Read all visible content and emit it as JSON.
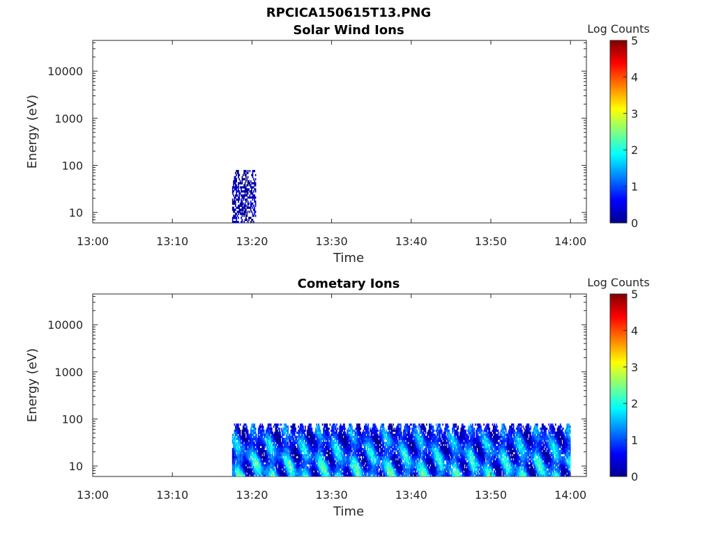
{
  "figure": {
    "title": "RPCICA150615T13.PNG"
  },
  "chart_data": [
    {
      "type": "heatmap",
      "title": "Solar Wind Ions",
      "xlabel": "Time",
      "ylabel": "Energy (eV)",
      "y_scale": "log",
      "xlim": [
        "13:00",
        "14:02"
      ],
      "ylim": [
        6,
        45000
      ],
      "x_ticks": [
        "13:00",
        "13:10",
        "13:20",
        "13:30",
        "13:40",
        "13:50",
        "14:00"
      ],
      "y_ticks": [
        "10",
        "100",
        "1000",
        "10000"
      ],
      "colorbar": {
        "label": "Log Counts",
        "range": [
          0,
          5
        ],
        "ticks": [
          "0",
          "1",
          "2",
          "3",
          "4",
          "5"
        ],
        "colormap": "jet"
      },
      "regions": [
        {
          "t_start": "13:17.5",
          "t_end": "13:20.5",
          "energy_min": 6,
          "energy_max": 80,
          "log_counts_range": [
            0,
            0.5
          ]
        }
      ]
    },
    {
      "type": "heatmap",
      "title": "Cometary Ions",
      "xlabel": "Time",
      "ylabel": "Energy (eV)",
      "y_scale": "log",
      "xlim": [
        "13:00",
        "14:02"
      ],
      "ylim": [
        6,
        45000
      ],
      "x_ticks": [
        "13:00",
        "13:10",
        "13:20",
        "13:30",
        "13:40",
        "13:50",
        "14:00"
      ],
      "y_ticks": [
        "10",
        "100",
        "1000",
        "10000"
      ],
      "colorbar": {
        "label": "Log Counts",
        "range": [
          0,
          5
        ],
        "ticks": [
          "0",
          "1",
          "2",
          "3",
          "4",
          "5"
        ],
        "colormap": "jet"
      },
      "regions": [
        {
          "t_start": "13:17.5",
          "t_end": "14:00",
          "energy_min": 6,
          "energy_max": 80,
          "log_counts_range": [
            0,
            2.5
          ]
        }
      ]
    }
  ]
}
